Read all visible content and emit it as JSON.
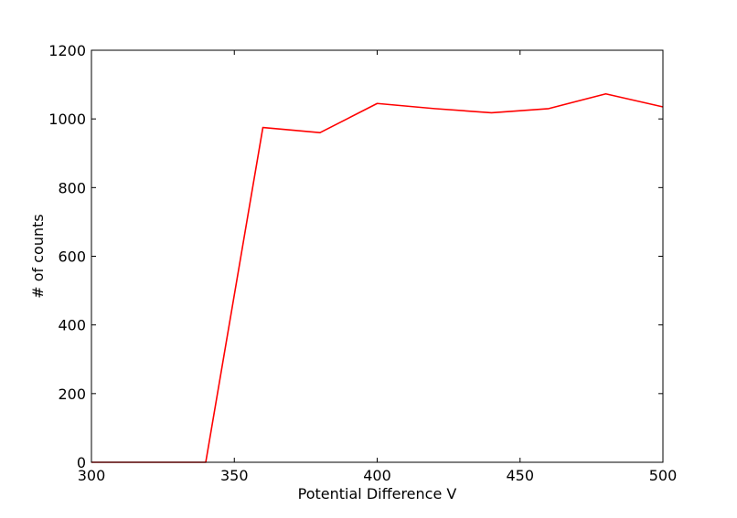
{
  "chart_data": {
    "type": "line",
    "title": "",
    "xlabel": "Potential Difference V",
    "ylabel": "# of counts",
    "xlim": [
      300,
      500
    ],
    "ylim": [
      0,
      1200
    ],
    "xticks": [
      "300",
      "350",
      "400",
      "450",
      "500"
    ],
    "yticks": [
      "0",
      "200",
      "400",
      "600",
      "800",
      "1000",
      "1200"
    ],
    "grid": false,
    "legend": "none",
    "series": [
      {
        "color": "#ff0000",
        "x": [
          300,
          320,
          340,
          360,
          380,
          400,
          420,
          440,
          460,
          480,
          500
        ],
        "y": [
          0,
          0,
          0,
          975,
          960,
          1045,
          1030,
          1018,
          1030,
          1073,
          1035
        ]
      }
    ]
  }
}
